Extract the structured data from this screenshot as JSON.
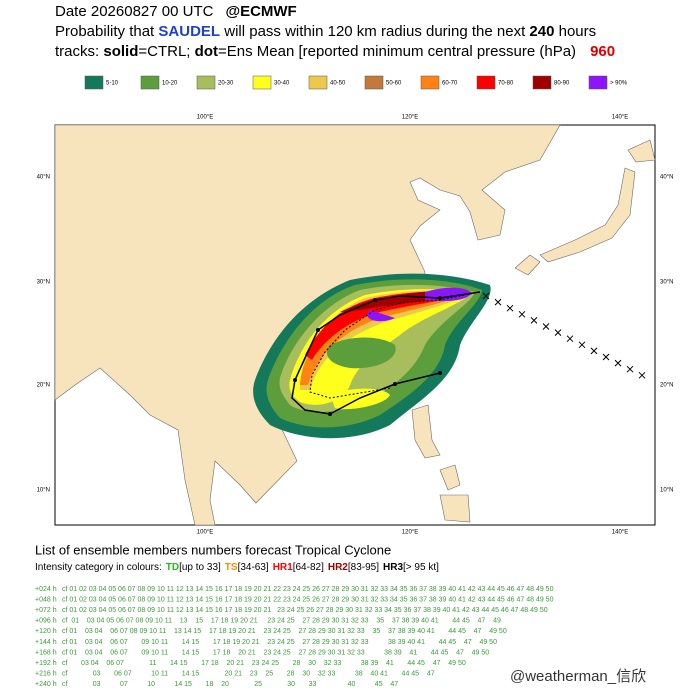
{
  "header": {
    "line1": [
      "Date 20260827 00 UTC",
      "@ECMWF"
    ],
    "line2": [
      "Probability that",
      "SAUDEL",
      "will pass within 120 km radius during the next",
      "240",
      "hours"
    ],
    "line3": [
      "tracks:",
      "solid",
      "=CTRL;",
      "dot",
      "=Ens Mean [reported minimum central pressure (hPa)",
      "960"
    ]
  },
  "legend": [
    {
      "label": "5-10",
      "color": "#14795a"
    },
    {
      "label": "10-20",
      "color": "#5c9e3c"
    },
    {
      "label": "20-30",
      "color": "#a8be5c"
    },
    {
      "label": "30-40",
      "color": "#ffff1e"
    },
    {
      "label": "40-50",
      "color": "#ecc94a"
    },
    {
      "label": "50-60",
      "color": "#c27a3c"
    },
    {
      "label": "60-70",
      "color": "#ff8214"
    },
    {
      "label": "70-80",
      "color": "#ff0000"
    },
    {
      "label": "80-90",
      "color": "#a00000"
    },
    {
      "label": "> 90%",
      "color": "#8c14ff"
    }
  ],
  "map": {
    "lon_labels": [
      "100°E",
      "120°E",
      "140°E"
    ],
    "lat_labels": [
      "40°N",
      "30°N",
      "20°N",
      "10°N"
    ]
  },
  "members": {
    "title": "List of ensemble members numbers forecast Tropical Cyclone",
    "intensity": [
      "Intensity category in colours:",
      "TD",
      "[up to 33]",
      "TS",
      "[34-63]",
      "HR1",
      "[64-82]",
      "HR2",
      "[83-95]",
      "HR3",
      "[> 95 kt]"
    ],
    "rows": [
      {
        "lead": "+024 h",
        "list": "cf 01 02 03 04 05 06 07 08 09 10 11 12 13 14 15 16 17 18 19 20 21 22 23 24 25 26 27 28 29 30 31 32 33 34 35 36 37 38 39 40 41 42 43 44 45 46 47 48 49 50"
      },
      {
        "lead": "+048 h",
        "list": "cf 01 02 03 04 05 06 07 08 09 10 11 12 13 14 15 16 17 18 19 20 21 22 23 24 25 26 27 28 29 30 31 32 33 34 35 36 37 38 39 40 41 42 43 44 45 46 47 48 49 50"
      },
      {
        "lead": "+072 h",
        "list": "cf 01 02 03 04 05 06 07 08 09 10 11 12 13 14 15 16 17 18 19 20 21   23 24 25 26 27 28 29 30 31 32 33 34 35 36 37 38 39 40 41 42 43 44 45 46 47 48 49 50"
      },
      {
        "lead": "+096 h",
        "list": "cf  01    03 04 05 06 07 08 09 10 11    13    15    17 18 19 20 21     23 24 25    27 28 29 30 31 32 33    35    37 38 39 40 41       44 45    47    49"
      },
      {
        "lead": "+120 h",
        "list": "cf 01    03 04    06 07 08 09 10 11    13 14 15    17 18 19 20 21    23 24 25    27 28 29 30 31 32 33    35    37 38 39 40 41       44 45    47    49 50"
      },
      {
        "lead": "+144 h",
        "list": "cf 01    03 04    06 07       09 10 11       14 15       17 18 19 20 21    23 24 25    27 28 29 30 31 32 33          38 39 40 41       44 45    47    49 50"
      },
      {
        "lead": "+168 h",
        "list": "cf 01    03 04    06 07       09 10 11       14 15       17 18    20 21    23 24 25    27 28 29 30 31 32 33          38 39    41       44 45    47    49 50"
      },
      {
        "lead": "+192 h",
        "list": "cf       03 04    06 07             11       14 15       17 18    20 21    23 24 25       28    30    32 33          38 39    41       44 45    47    49 50"
      },
      {
        "lead": "+216 h",
        "list": "cf             03       06 07          10 11       14 15             20 21    23    25       28    30    32 33          38    40 41       44 45    47"
      },
      {
        "lead": "+240 h",
        "list": "cf             03          07          10          14 15       18    20             25             30       33                40          45    47"
      }
    ]
  },
  "watermark": "@weatherman_信欣"
}
